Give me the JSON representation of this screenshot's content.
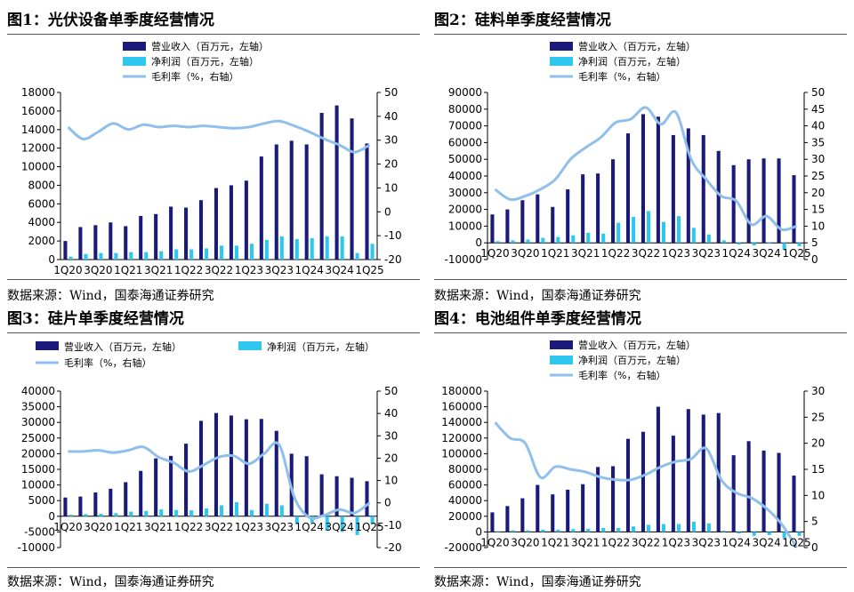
{
  "source": "数据来源：Wind，国泰海通证券研究",
  "colors": {
    "revenue": "#1a1a7a",
    "net_profit": "#2ec7ee",
    "margin": "#8fbfea"
  },
  "chart_data": [
    {
      "title": "图1：光伏设备单季度经营情况",
      "type": "bar",
      "legend": [
        "营业收入（百万元，左轴）",
        "净利润（百万元，左轴）",
        "毛利率（%，右轴）"
      ],
      "legend_layout": "stacked",
      "x_tick_labels": [
        "1Q20",
        "3Q20",
        "1Q21",
        "3Q21",
        "1Q22",
        "3Q22",
        "1Q23",
        "3Q23",
        "1Q24",
        "3Q24",
        "1Q25"
      ],
      "yleft": {
        "min": 0,
        "max": 18000,
        "ticks": [
          "0",
          "2000",
          "4000",
          "6000",
          "8000",
          "10000",
          "12000",
          "14000",
          "16000",
          "18000"
        ]
      },
      "yright": {
        "min": -20,
        "max": 50,
        "ticks": [
          "-20",
          "-10",
          "0",
          "10",
          "20",
          "30",
          "40",
          "50"
        ]
      },
      "categories": [
        "1Q20",
        "2Q20",
        "3Q20",
        "4Q20",
        "1Q21",
        "2Q21",
        "3Q21",
        "4Q21",
        "1Q22",
        "2Q22",
        "3Q22",
        "4Q22",
        "1Q23",
        "2Q23",
        "3Q23",
        "4Q23",
        "1Q24",
        "2Q24",
        "3Q24",
        "4Q24",
        "1Q25"
      ],
      "series": [
        {
          "name": "营业收入（百万元，左轴）",
          "kind": "bar",
          "axis": "left",
          "values": [
            2000,
            3500,
            3700,
            4000,
            3600,
            4700,
            4900,
            5700,
            5600,
            6400,
            7700,
            8000,
            8500,
            11100,
            12400,
            12800,
            12400,
            15800,
            16600,
            15200,
            12500
          ]
        },
        {
          "name": "净利润（百万元，左轴）",
          "kind": "bar",
          "axis": "left",
          "values": [
            300,
            600,
            700,
            700,
            800,
            800,
            900,
            1100,
            1100,
            1200,
            1500,
            1500,
            1700,
            2100,
            2500,
            2200,
            2300,
            2500,
            2500,
            700,
            1700
          ]
        },
        {
          "name": "毛利率（%，右轴）",
          "kind": "line",
          "axis": "right",
          "values": [
            35.5,
            30.5,
            33.5,
            37,
            34.5,
            36.5,
            35.5,
            36,
            35.5,
            36,
            35.5,
            35,
            35.5,
            37,
            38,
            36,
            33.5,
            30.5,
            28,
            25,
            28
          ]
        }
      ]
    },
    {
      "title": "图2：硅料单季度经营情况",
      "type": "bar",
      "legend": [
        "营业收入（百万元，左轴）",
        "净利润（百万元，左轴）",
        "毛利率（%，右轴）"
      ],
      "legend_layout": "stacked",
      "x_tick_labels": [
        "1Q20",
        "3Q20",
        "1Q21",
        "3Q21",
        "1Q22",
        "3Q22",
        "1Q23",
        "3Q23",
        "1Q24",
        "3Q24",
        "1Q25"
      ],
      "yleft": {
        "min": -10000,
        "max": 90000,
        "ticks": [
          "-10000",
          "0",
          "10000",
          "20000",
          "30000",
          "40000",
          "50000",
          "60000",
          "70000",
          "80000",
          "90000"
        ]
      },
      "yright": {
        "min": 0,
        "max": 50,
        "ticks": [
          "0",
          "5",
          "10",
          "15",
          "20",
          "25",
          "30",
          "35",
          "40",
          "45",
          "50"
        ]
      },
      "categories": [
        "1Q20",
        "2Q20",
        "3Q20",
        "4Q20",
        "1Q21",
        "2Q21",
        "3Q21",
        "4Q21",
        "1Q22",
        "2Q22",
        "3Q22",
        "4Q22",
        "1Q23",
        "2Q23",
        "3Q23",
        "4Q23",
        "1Q24",
        "2Q24",
        "3Q24",
        "4Q24",
        "1Q25"
      ],
      "series": [
        {
          "name": "营业收入（百万元，左轴）",
          "kind": "bar",
          "axis": "left",
          "values": [
            17000,
            20000,
            25500,
            29000,
            21500,
            32000,
            41000,
            41500,
            50000,
            65500,
            77000,
            75500,
            64500,
            68500,
            64500,
            55000,
            46500,
            50000,
            50500,
            50500,
            40500
          ]
        },
        {
          "name": "净利润（百万元，左轴）",
          "kind": "bar",
          "axis": "left",
          "values": [
            1000,
            1500,
            2000,
            3000,
            3500,
            4500,
            6000,
            5500,
            12000,
            15500,
            19000,
            12500,
            16000,
            9000,
            5000,
            1500,
            -1000,
            -1500,
            -500,
            -4000,
            -2000
          ]
        },
        {
          "name": "毛利率（%，右轴）",
          "kind": "line",
          "axis": "right",
          "values": [
            21,
            18,
            19,
            21,
            24,
            30,
            33.5,
            36.5,
            41,
            42,
            45.5,
            40.5,
            44,
            30,
            24,
            19,
            17.5,
            10.5,
            13,
            9,
            10
          ]
        }
      ]
    },
    {
      "title": "图3：硅片单季度经营情况",
      "type": "bar",
      "legend": [
        "营业收入（百万元，左轴）",
        "净利润（百万元，左轴）",
        "毛利率（%，右轴）"
      ],
      "legend_layout": "inline",
      "x_tick_labels": [
        "1Q20",
        "3Q20",
        "1Q21",
        "3Q21",
        "1Q22",
        "3Q22",
        "1Q23",
        "3Q23",
        "1Q24",
        "3Q24",
        "1Q25"
      ],
      "yleft": {
        "min": -10000,
        "max": 40000,
        "ticks": [
          "-10000",
          "-5000",
          "0",
          "5000",
          "10000",
          "15000",
          "20000",
          "25000",
          "30000",
          "35000",
          "40000"
        ]
      },
      "yright": {
        "min": -20,
        "max": 50,
        "ticks": [
          "-20",
          "-10",
          "0",
          "10",
          "20",
          "30",
          "40",
          "50"
        ]
      },
      "categories": [
        "1Q20",
        "2Q20",
        "3Q20",
        "4Q20",
        "1Q21",
        "2Q21",
        "3Q21",
        "4Q21",
        "1Q22",
        "2Q22",
        "3Q22",
        "4Q22",
        "1Q23",
        "2Q23",
        "3Q23",
        "4Q23",
        "1Q24",
        "2Q24",
        "3Q24",
        "4Q24",
        "1Q25"
      ],
      "series": [
        {
          "name": "营业收入（百万元，左轴）",
          "kind": "bar",
          "axis": "left",
          "values": [
            6000,
            6300,
            7600,
            8800,
            10900,
            14500,
            18500,
            19300,
            23200,
            30500,
            33000,
            32200,
            31000,
            31100,
            27300,
            20000,
            19200,
            13400,
            12800,
            12300,
            11200
          ]
        },
        {
          "name": "净利润（百万元，左轴）",
          "kind": "bar",
          "axis": "left",
          "values": [
            500,
            700,
            800,
            1000,
            1500,
            1700,
            2200,
            2000,
            1900,
            2500,
            3500,
            4500,
            2000,
            4000,
            3500,
            -2500,
            -2000,
            -4500,
            -5000,
            -6000,
            -2500
          ]
        },
        {
          "name": "毛利率（%，右轴）",
          "kind": "line",
          "axis": "right",
          "values": [
            23,
            23,
            23.5,
            22.5,
            23.5,
            25,
            20.5,
            18,
            14,
            17,
            20.5,
            21,
            17.5,
            22,
            26,
            2.5,
            -6.5,
            -5.5,
            -3,
            -4.5,
            0
          ]
        }
      ]
    },
    {
      "title": "图4：电池组件单季度经营情况",
      "type": "bar",
      "legend": [
        "营业收入（百万元，左轴）",
        "净利润（百万元，左轴）",
        "毛利率（%，右轴）"
      ],
      "legend_layout": "stacked",
      "x_tick_labels": [
        "1Q20",
        "3Q20",
        "1Q21",
        "3Q21",
        "1Q22",
        "3Q22",
        "1Q23",
        "3Q23",
        "1Q24",
        "3Q24",
        "1Q25"
      ],
      "yleft": {
        "min": -20000,
        "max": 180000,
        "ticks": [
          "-20000",
          "0",
          "20000",
          "40000",
          "60000",
          "80000",
          "100000",
          "120000",
          "140000",
          "160000",
          "180000"
        ]
      },
      "yright": {
        "min": 0,
        "max": 30,
        "ticks": [
          "0",
          "5",
          "10",
          "15",
          "20",
          "25",
          "30"
        ]
      },
      "categories": [
        "1Q20",
        "2Q20",
        "3Q20",
        "4Q20",
        "1Q21",
        "2Q21",
        "3Q21",
        "4Q21",
        "1Q22",
        "2Q22",
        "3Q22",
        "4Q22",
        "1Q23",
        "2Q23",
        "3Q23",
        "4Q23",
        "1Q24",
        "2Q24",
        "3Q24",
        "4Q24",
        "1Q25"
      ],
      "series": [
        {
          "name": "营业收入（百万元，左轴）",
          "kind": "bar",
          "axis": "left",
          "values": [
            25000,
            33000,
            43000,
            60000,
            48000,
            54000,
            61000,
            83000,
            84000,
            119000,
            128000,
            160000,
            123000,
            157000,
            150000,
            152000,
            98000,
            116000,
            104000,
            101000,
            72000
          ]
        },
        {
          "name": "净利润（百万元，左轴）",
          "kind": "bar",
          "axis": "left",
          "values": [
            1000,
            2000,
            2000,
            3000,
            3000,
            3500,
            4000,
            5000,
            5000,
            7000,
            9000,
            10000,
            10000,
            13000,
            11000,
            1500,
            -2000,
            -5000,
            -4000,
            -8000,
            -5000
          ]
        },
        {
          "name": "毛利率（%，右轴）",
          "kind": "line",
          "axis": "right",
          "values": [
            24,
            21,
            20,
            13.5,
            15.5,
            15,
            14.5,
            13.5,
            13,
            13,
            14,
            15.5,
            16.5,
            17,
            19,
            13,
            10.5,
            9.5,
            7.5,
            4.5,
            0
          ]
        }
      ]
    }
  ]
}
